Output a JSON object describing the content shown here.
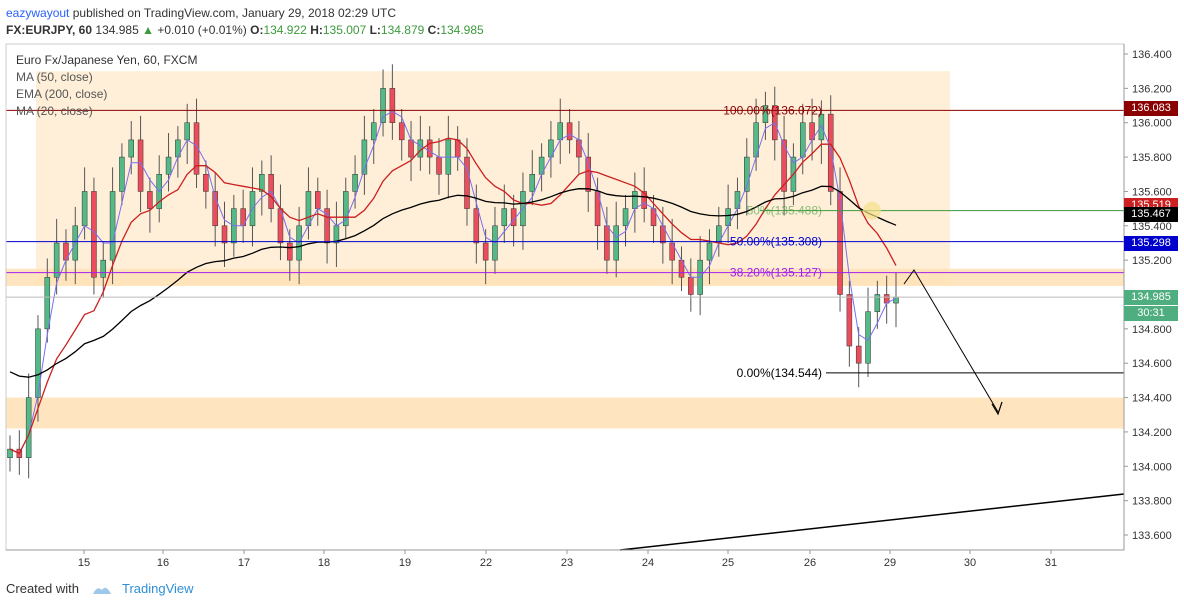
{
  "header": {
    "author": "eazywayout",
    "published_text": "published on TradingView.com, January 29, 2018 02:29 UTC"
  },
  "ohlc": {
    "symbol": "FX:EURJPY, 60",
    "last": "134.985",
    "change": "+0.010 (+0.01%)",
    "open_label": "O:",
    "open": "134.922",
    "high_label": "H:",
    "high": "135.007",
    "low_label": "L:",
    "low": "134.879",
    "close_label": "C:",
    "close": "134.985"
  },
  "legend": {
    "title": "Euro Fx/Japanese Yen, 60, FXCM",
    "indicators": [
      "MA (50, close)",
      "EMA (200, close)",
      "MA (20, close)"
    ]
  },
  "colors": {
    "up_candle": "#53b987",
    "down_candle": "#eb4d5c",
    "ma50": "#7a6ff0",
    "ema200": "#000000",
    "ma20": "#cc1f1f",
    "zone": "#ffe2b8",
    "fib_100": "#8b0000",
    "fib_50": "#0000cc",
    "fib_382": "#a020f0",
    "fib_0": "#000000"
  },
  "price_tags": [
    {
      "value": "136.083",
      "color": "#8b0000"
    },
    {
      "value": "135.519",
      "color": "#cc1f1f"
    },
    {
      "value": "135.467",
      "color": "#000000"
    },
    {
      "value": "135.298",
      "color": "#0000cc"
    },
    {
      "value": "134.985",
      "color": "#4fae7f"
    },
    {
      "value": "30:31",
      "color": "#4fae7f"
    }
  ],
  "fib_labels": [
    {
      "text": "100.00%(136.072)",
      "price": 136.072
    },
    {
      "text": "50.00%(135.308)",
      "price": 135.308
    },
    {
      "text": "38.20%(135.127)",
      "price": 135.127
    },
    {
      "text": "0.00%(134.544)",
      "price": 134.544
    }
  ],
  "fib_partial_label": "50%(135.488)",
  "footer": {
    "created_with": "Created with",
    "brand": "TradingView"
  },
  "chart_data": {
    "type": "candlestick",
    "title": "Euro Fx/Japanese Yen, 60, FXCM",
    "ylim": [
      133.5,
      136.5
    ],
    "y_ticks": [
      "136.400",
      "136.200",
      "136.000",
      "135.800",
      "135.600",
      "135.400",
      "135.200",
      "135.000",
      "134.800",
      "134.600",
      "134.400",
      "134.200",
      "134.000",
      "133.800",
      "133.600"
    ],
    "x_ticks": [
      "15",
      "16",
      "17",
      "18",
      "19",
      "22",
      "23",
      "24",
      "25",
      "26",
      "29",
      "30",
      "31"
    ],
    "series": [
      {
        "name": "MA (50, close)"
      },
      {
        "name": "EMA (200, close)"
      },
      {
        "name": "MA (20, close)"
      }
    ],
    "levels": {
      "fib_100": 136.072,
      "fib_50": 135.308,
      "fib_382": 135.127,
      "fib_0": 134.544,
      "fib_partial": 135.488,
      "last_price": 134.985
    },
    "zones": [
      {
        "from": 135.05,
        "to": 136.3
      },
      {
        "from": 135.05,
        "to": 135.15
      },
      {
        "from": 134.22,
        "to": 134.4
      }
    ],
    "candles_approx_close": [
      134.1,
      134.05,
      134.4,
      134.8,
      135.1,
      135.3,
      135.2,
      135.4,
      135.6,
      135.1,
      135.2,
      135.6,
      135.8,
      135.9,
      135.6,
      135.5,
      135.7,
      135.8,
      135.9,
      136.0,
      135.7,
      135.6,
      135.4,
      135.3,
      135.5,
      135.4,
      135.6,
      135.7,
      135.5,
      135.3,
      135.2,
      135.4,
      135.6,
      135.5,
      135.3,
      135.4,
      135.6,
      135.7,
      135.9,
      136.0,
      136.2,
      136.0,
      135.9,
      135.8,
      135.9,
      135.8,
      135.7,
      135.9,
      135.8,
      135.5,
      135.3,
      135.2,
      135.4,
      135.5,
      135.4,
      135.6,
      135.7,
      135.8,
      135.9,
      136.0,
      135.9,
      135.8,
      135.6,
      135.4,
      135.2,
      135.4,
      135.5,
      135.6,
      135.5,
      135.4,
      135.3,
      135.2,
      135.1,
      135.0,
      135.2,
      135.3,
      135.4,
      135.5,
      135.6,
      135.8,
      136.0,
      136.1,
      135.9,
      135.6,
      135.8,
      136.0,
      135.9,
      136.05,
      135.6,
      135.0,
      134.7,
      134.6,
      134.9,
      135.0,
      134.95,
      134.985
    ]
  }
}
